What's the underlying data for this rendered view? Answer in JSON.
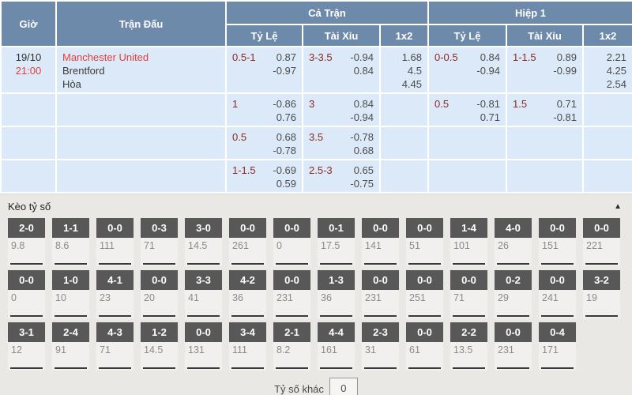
{
  "table": {
    "headers": {
      "time": "Giờ",
      "match": "Trận Đấu",
      "full_match": "Cả Trận",
      "first_half": "Hiệp 1",
      "handicap": "Tỷ Lệ",
      "over_under": "Tài Xỉu",
      "one_x_two": "1x2"
    },
    "match": {
      "date": "19/10",
      "time": "21:00",
      "home": "Manchester United",
      "away": "Brentford",
      "draw": "Hòa"
    },
    "rows": [
      {
        "ft_hc_line": "0.5-1",
        "ft_hc_odds": [
          "0.87",
          "-0.97"
        ],
        "ft_ou_line": "3-3.5",
        "ft_ou_odds": [
          "-0.94",
          "0.84"
        ],
        "ft_1x2": [
          "1.68",
          "4.5",
          "4.45"
        ],
        "h1_hc_line": "0-0.5",
        "h1_hc_odds": [
          "0.84",
          "-0.94"
        ],
        "h1_ou_line": "1-1.5",
        "h1_ou_odds": [
          "0.89",
          "-0.99"
        ],
        "h1_1x2": [
          "2.21",
          "4.25",
          "2.54"
        ]
      },
      {
        "ft_hc_line": "1",
        "ft_hc_odds": [
          "-0.86",
          "0.76"
        ],
        "ft_ou_line": "3",
        "ft_ou_odds": [
          "0.84",
          "-0.94"
        ],
        "ft_1x2": [],
        "h1_hc_line": "0.5",
        "h1_hc_odds": [
          "-0.81",
          "0.71"
        ],
        "h1_ou_line": "1.5",
        "h1_ou_odds": [
          "0.71",
          "-0.81"
        ],
        "h1_1x2": []
      },
      {
        "ft_hc_line": "0.5",
        "ft_hc_odds": [
          "0.68",
          "-0.78"
        ],
        "ft_ou_line": "3.5",
        "ft_ou_odds": [
          "-0.78",
          "0.68"
        ],
        "ft_1x2": [],
        "h1_hc_line": "",
        "h1_hc_odds": [],
        "h1_ou_line": "",
        "h1_ou_odds": [],
        "h1_1x2": []
      },
      {
        "ft_hc_line": "1-1.5",
        "ft_hc_odds": [
          "-0.69",
          "0.59"
        ],
        "ft_ou_line": "2.5-3",
        "ft_ou_odds": [
          "0.65",
          "-0.75"
        ],
        "ft_1x2": [],
        "h1_hc_line": "",
        "h1_hc_odds": [],
        "h1_ou_line": "",
        "h1_ou_odds": [],
        "h1_1x2": []
      }
    ]
  },
  "score_section": {
    "title": "Kèo tỷ số",
    "collapse_icon": "▲",
    "rows": [
      [
        {
          "score": "2-0",
          "odds": "9.8"
        },
        {
          "score": "1-1",
          "odds": "8.6"
        },
        {
          "score": "0-0",
          "odds": "111"
        },
        {
          "score": "0-3",
          "odds": "71"
        },
        {
          "score": "3-0",
          "odds": "14.5"
        },
        {
          "score": "0-0",
          "odds": "261"
        },
        {
          "score": "0-0",
          "odds": "0"
        },
        {
          "score": "0-1",
          "odds": "17.5"
        },
        {
          "score": "0-0",
          "odds": "141"
        },
        {
          "score": "0-0",
          "odds": "51"
        },
        {
          "score": "1-4",
          "odds": "101"
        },
        {
          "score": "4-0",
          "odds": "26"
        },
        {
          "score": "0-0",
          "odds": "151"
        },
        {
          "score": "0-0",
          "odds": "221"
        }
      ],
      [
        {
          "score": "0-0",
          "odds": "0"
        },
        {
          "score": "1-0",
          "odds": "10"
        },
        {
          "score": "4-1",
          "odds": "23"
        },
        {
          "score": "0-0",
          "odds": "20"
        },
        {
          "score": "3-3",
          "odds": "41"
        },
        {
          "score": "4-2",
          "odds": "36"
        },
        {
          "score": "0-0",
          "odds": "231"
        },
        {
          "score": "1-3",
          "odds": "36"
        },
        {
          "score": "0-0",
          "odds": "231"
        },
        {
          "score": "0-0",
          "odds": "251"
        },
        {
          "score": "0-0",
          "odds": "71"
        },
        {
          "score": "0-2",
          "odds": "29"
        },
        {
          "score": "0-0",
          "odds": "241"
        },
        {
          "score": "3-2",
          "odds": "19"
        }
      ],
      [
        {
          "score": "3-1",
          "odds": "12"
        },
        {
          "score": "2-4",
          "odds": "91"
        },
        {
          "score": "4-3",
          "odds": "71"
        },
        {
          "score": "1-2",
          "odds": "14.5"
        },
        {
          "score": "0-0",
          "odds": "131"
        },
        {
          "score": "3-4",
          "odds": "111"
        },
        {
          "score": "2-1",
          "odds": "8.2"
        },
        {
          "score": "4-4",
          "odds": "161"
        },
        {
          "score": "2-3",
          "odds": "31"
        },
        {
          "score": "0-0",
          "odds": "61"
        },
        {
          "score": "2-2",
          "odds": "13.5"
        },
        {
          "score": "0-0",
          "odds": "231"
        },
        {
          "score": "0-4",
          "odds": "171"
        }
      ]
    ],
    "other": {
      "label": "Tỷ số khác",
      "value": "0"
    }
  }
}
